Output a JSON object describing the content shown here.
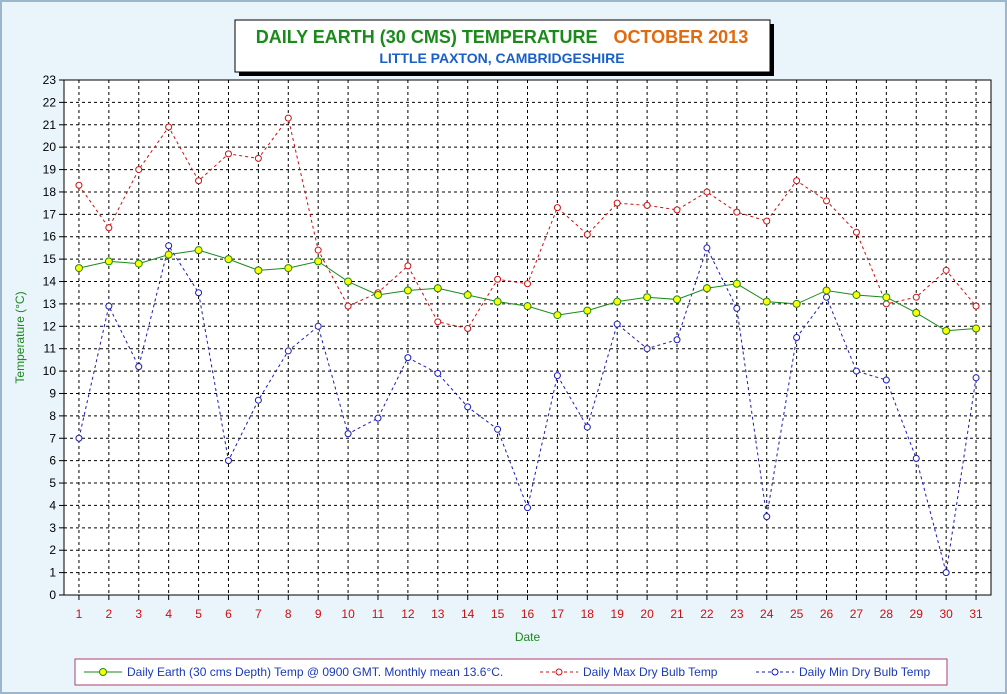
{
  "chart_data": {
    "type": "line",
    "title": "DAILY EARTH (30 CMS) TEMPERATURE",
    "title_period": "OCTOBER 2013",
    "subtitle": "LITTLE PAXTON, CAMBRIDGESHIRE",
    "xlabel": "Date",
    "ylabel": "Temperature (°C)",
    "ylim": [
      0,
      23
    ],
    "grid": true,
    "legend_position": "bottom",
    "x": [
      1,
      2,
      3,
      4,
      5,
      6,
      7,
      8,
      9,
      10,
      11,
      12,
      13,
      14,
      15,
      16,
      17,
      18,
      19,
      20,
      21,
      22,
      23,
      24,
      25,
      26,
      27,
      28,
      29,
      30,
      31
    ],
    "series": [
      {
        "name": "Daily Earth (30 cms Depth) Temp @ 0900 GMT. Monthly mean 13.6°C.",
        "color": "#1a8a1a",
        "marker_fill": "#ffff00",
        "style": "solid",
        "values": [
          14.6,
          14.9,
          14.8,
          15.2,
          15.4,
          15.0,
          14.5,
          14.6,
          14.9,
          14.0,
          13.4,
          13.6,
          13.7,
          13.4,
          13.1,
          12.9,
          12.5,
          12.7,
          13.1,
          13.3,
          13.2,
          13.7,
          13.9,
          13.1,
          13.0,
          13.6,
          13.4,
          13.3,
          12.6,
          11.8,
          11.9
        ]
      },
      {
        "name": "Daily Max Dry Bulb Temp",
        "color": "#cc1010",
        "marker_fill": "none",
        "style": "dashed",
        "values": [
          18.3,
          16.4,
          19.0,
          20.9,
          18.5,
          19.7,
          19.5,
          21.3,
          15.4,
          12.9,
          13.5,
          14.7,
          12.2,
          11.9,
          14.1,
          13.9,
          17.3,
          16.1,
          17.5,
          17.4,
          17.2,
          18.0,
          17.1,
          16.7,
          18.5,
          17.6,
          16.2,
          13.0,
          13.3,
          14.5,
          12.9
        ]
      },
      {
        "name": "Daily Min Dry Bulb Temp",
        "color": "#1a1ab8",
        "marker_fill": "none",
        "style": "dashed",
        "values": [
          7.0,
          12.9,
          10.2,
          15.6,
          13.5,
          6.0,
          8.7,
          10.9,
          12.0,
          7.2,
          7.9,
          10.6,
          9.9,
          8.4,
          7.4,
          3.9,
          9.8,
          7.5,
          12.1,
          11.0,
          11.4,
          15.5,
          12.8,
          3.5,
          11.5,
          13.3,
          10.0,
          9.6,
          6.1,
          1.0,
          9.7
        ]
      }
    ]
  }
}
